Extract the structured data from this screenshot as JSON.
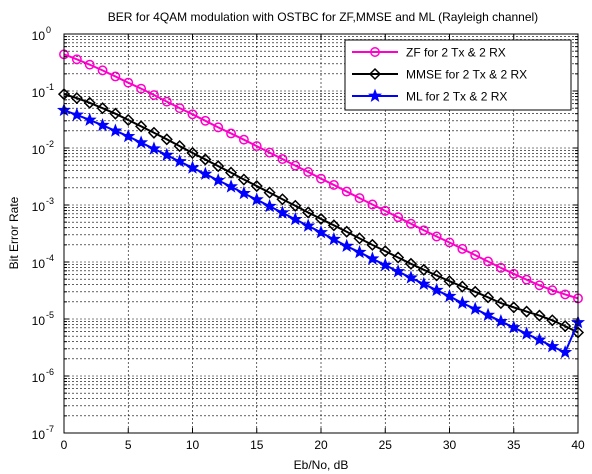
{
  "chart_data": {
    "type": "line",
    "title": "BER for 4QAM modulation with OSTBC for ZF,MMSE and ML (Rayleigh channel)",
    "xlabel": "Eb/No, dB",
    "ylabel": "Bit Error Rate",
    "xlim": [
      0,
      40
    ],
    "ylim": [
      1e-07,
      1
    ],
    "yscale": "log",
    "grid": true,
    "legend_position": "top-right",
    "x_ticks": [
      0,
      5,
      10,
      15,
      20,
      25,
      30,
      35,
      40
    ],
    "y_tick_mantissa": "10",
    "y_tick_exponents": [
      "-7",
      "-6",
      "-5",
      "-4",
      "-3",
      "-2",
      "-1",
      "0"
    ],
    "x": [
      0,
      1,
      2,
      3,
      4,
      5,
      6,
      7,
      8,
      9,
      10,
      11,
      12,
      13,
      14,
      15,
      16,
      17,
      18,
      19,
      20,
      21,
      22,
      23,
      24,
      25,
      26,
      27,
      28,
      29,
      30,
      31,
      32,
      33,
      34,
      35,
      36,
      37,
      38,
      39,
      40
    ],
    "series": [
      {
        "name": "ZF for 2 Tx & 2 RX",
        "color": "#ff00cc",
        "marker": "circle",
        "values": [
          0.44,
          0.36,
          0.29,
          0.23,
          0.18,
          0.14,
          0.11,
          0.085,
          0.065,
          0.05,
          0.039,
          0.03,
          0.023,
          0.018,
          0.014,
          0.0108,
          0.0083,
          0.0064,
          0.0049,
          0.0038,
          0.0029,
          0.00225,
          0.00172,
          0.00132,
          0.00102,
          0.00079,
          0.00061,
          0.00047,
          0.00036,
          0.00028,
          0.00022,
          0.00017,
          0.000132,
          0.000102,
          7.9e-05,
          6.2e-05,
          4.9e-05,
          3.9e-05,
          3.2e-05,
          2.7e-05,
          2.3e-05
        ]
      },
      {
        "name": "MMSE for 2 Tx & 2 RX",
        "color": "#000000",
        "marker": "diamond",
        "values": [
          0.088,
          0.075,
          0.062,
          0.05,
          0.04,
          0.031,
          0.024,
          0.0185,
          0.0142,
          0.0108,
          0.0082,
          0.0063,
          0.0048,
          0.0037,
          0.0028,
          0.00215,
          0.00165,
          0.00126,
          0.00097,
          0.00074,
          0.00057,
          0.00044,
          0.00034,
          0.00026,
          0.0002,
          0.000155,
          0.00012,
          9.3e-05,
          7.3e-05,
          5.8e-05,
          4.6e-05,
          3.7e-05,
          3e-05,
          2.4e-05,
          1.9e-05,
          1.6e-05,
          1.35e-05,
          1.15e-05,
          9.5e-06,
          7.5e-06,
          5.8e-06
        ]
      },
      {
        "name": "ML for 2 Tx & 2 RX",
        "color": "#0000ff",
        "marker": "star",
        "values": [
          0.046,
          0.038,
          0.031,
          0.025,
          0.02,
          0.016,
          0.0124,
          0.0097,
          0.0075,
          0.0058,
          0.0045,
          0.0035,
          0.0027,
          0.0021,
          0.0016,
          0.00124,
          0.00095,
          0.00073,
          0.00056,
          0.00043,
          0.00033,
          0.00025,
          0.00019,
          0.000148,
          0.000114,
          8.8e-05,
          6.8e-05,
          5.3e-05,
          4.1e-05,
          3.2e-05,
          2.5e-05,
          1.9e-05,
          1.5e-05,
          1.17e-05,
          9.1e-06,
          7.1e-06,
          5.5e-06,
          4.3e-06,
          3.3e-06,
          2.6e-06,
          8.7e-06
        ]
      }
    ]
  }
}
